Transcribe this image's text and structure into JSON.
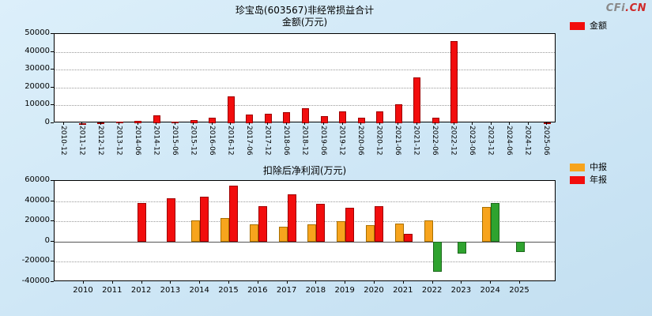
{
  "logo": {
    "gray": "CFi",
    "red": ".CN"
  },
  "colors": {
    "red": {
      "fill": "#f20d0d",
      "edge": "#9e0000"
    },
    "orange": {
      "fill": "#f7a41d",
      "edge": "#a86f00"
    },
    "green": {
      "fill": "#2fa32f",
      "edge": "#1c681c"
    }
  },
  "chart_data": [
    {
      "type": "bar",
      "title": "珍宝岛(603567)非经常损益合计",
      "subtitle": "金额(万元)",
      "legend": [
        {
          "label": "金额",
          "color": "red"
        }
      ],
      "legend_position": "top-right",
      "grid": true,
      "ylim": [
        0,
        50000
      ],
      "yticks": [
        0,
        10000,
        20000,
        30000,
        40000,
        50000
      ],
      "bar_color": "red",
      "categories": [
        "2010-12",
        "2011-12",
        "2012-12",
        "2013-12",
        "2014-06",
        "2014-12",
        "2015-06",
        "2015-12",
        "2016-06",
        "2016-12",
        "2017-06",
        "2017-12",
        "2018-06",
        "2018-12",
        "2019-06",
        "2019-12",
        "2020-06",
        "2020-12",
        "2021-06",
        "2021-12",
        "2022-06",
        "2022-12",
        "2023-06",
        "2023-12",
        "2024-06",
        "2024-12",
        "2025-06"
      ],
      "values": [
        0,
        200,
        500,
        800,
        1500,
        4500,
        800,
        1800,
        3200,
        15000,
        5000,
        5500,
        6000,
        8500,
        4000,
        6500,
        3000,
        6800,
        10500,
        25500,
        3000,
        46000,
        0,
        0,
        0,
        0,
        500
      ]
    },
    {
      "type": "bar",
      "title": "扣除后净利润(万元)",
      "legend": [
        {
          "label": "中报",
          "color": "orange"
        },
        {
          "label": "年报",
          "color": "red"
        }
      ],
      "legend_position": "top-right",
      "grid": true,
      "ylim": [
        -40000,
        60000
      ],
      "yticks": [
        -40000,
        -20000,
        0,
        20000,
        40000,
        60000
      ],
      "categories": [
        "2010",
        "2011",
        "2012",
        "2013",
        "2014",
        "2015",
        "2016",
        "2017",
        "2018",
        "2019",
        "2020",
        "2021",
        "2022",
        "2023",
        "2024",
        "2025"
      ],
      "bars": [
        {
          "category": "2012",
          "series": "年报",
          "value": 38000,
          "color": "red",
          "pos": "C"
        },
        {
          "category": "2013",
          "series": "年报",
          "value": 43000,
          "color": "red",
          "pos": "C"
        },
        {
          "category": "2014",
          "series": "中报",
          "value": 21000,
          "color": "orange",
          "pos": "L"
        },
        {
          "category": "2014",
          "series": "年报",
          "value": 44000,
          "color": "red",
          "pos": "R"
        },
        {
          "category": "2015",
          "series": "中报",
          "value": 23500,
          "color": "orange",
          "pos": "L"
        },
        {
          "category": "2015",
          "series": "年报",
          "value": 55000,
          "color": "red",
          "pos": "R"
        },
        {
          "category": "2016",
          "series": "中报",
          "value": 17000,
          "color": "orange",
          "pos": "L"
        },
        {
          "category": "2016",
          "series": "年报",
          "value": 35000,
          "color": "red",
          "pos": "R"
        },
        {
          "category": "2017",
          "series": "中报",
          "value": 15000,
          "color": "orange",
          "pos": "L"
        },
        {
          "category": "2017",
          "series": "年报",
          "value": 47000,
          "color": "red",
          "pos": "R"
        },
        {
          "category": "2018",
          "series": "中报",
          "value": 17000,
          "color": "orange",
          "pos": "L"
        },
        {
          "category": "2018",
          "series": "年报",
          "value": 37000,
          "color": "red",
          "pos": "R"
        },
        {
          "category": "2019",
          "series": "中报",
          "value": 20000,
          "color": "orange",
          "pos": "L"
        },
        {
          "category": "2019",
          "series": "年报",
          "value": 33500,
          "color": "red",
          "pos": "R"
        },
        {
          "category": "2020",
          "series": "中报",
          "value": 16000,
          "color": "orange",
          "pos": "L"
        },
        {
          "category": "2020",
          "series": "年报",
          "value": 35000,
          "color": "red",
          "pos": "R"
        },
        {
          "category": "2021",
          "series": "中报",
          "value": 17500,
          "color": "orange",
          "pos": "L"
        },
        {
          "category": "2021",
          "series": "年报",
          "value": 8000,
          "color": "red",
          "pos": "R"
        },
        {
          "category": "2022",
          "series": "中报",
          "value": 21000,
          "color": "orange",
          "pos": "L"
        },
        {
          "category": "2022",
          "series": "年报",
          "value": -30000,
          "color": "green",
          "pos": "R"
        },
        {
          "category": "2023",
          "series": "年报",
          "value": -12000,
          "color": "green",
          "pos": "C"
        },
        {
          "category": "2024",
          "series": "中报",
          "value": 34000,
          "color": "orange",
          "pos": "L"
        },
        {
          "category": "2024",
          "series": "年报",
          "value": 38000,
          "color": "green",
          "pos": "R"
        },
        {
          "category": "2025",
          "series": "中报",
          "value": -10000,
          "color": "green",
          "pos": "C"
        }
      ]
    }
  ]
}
